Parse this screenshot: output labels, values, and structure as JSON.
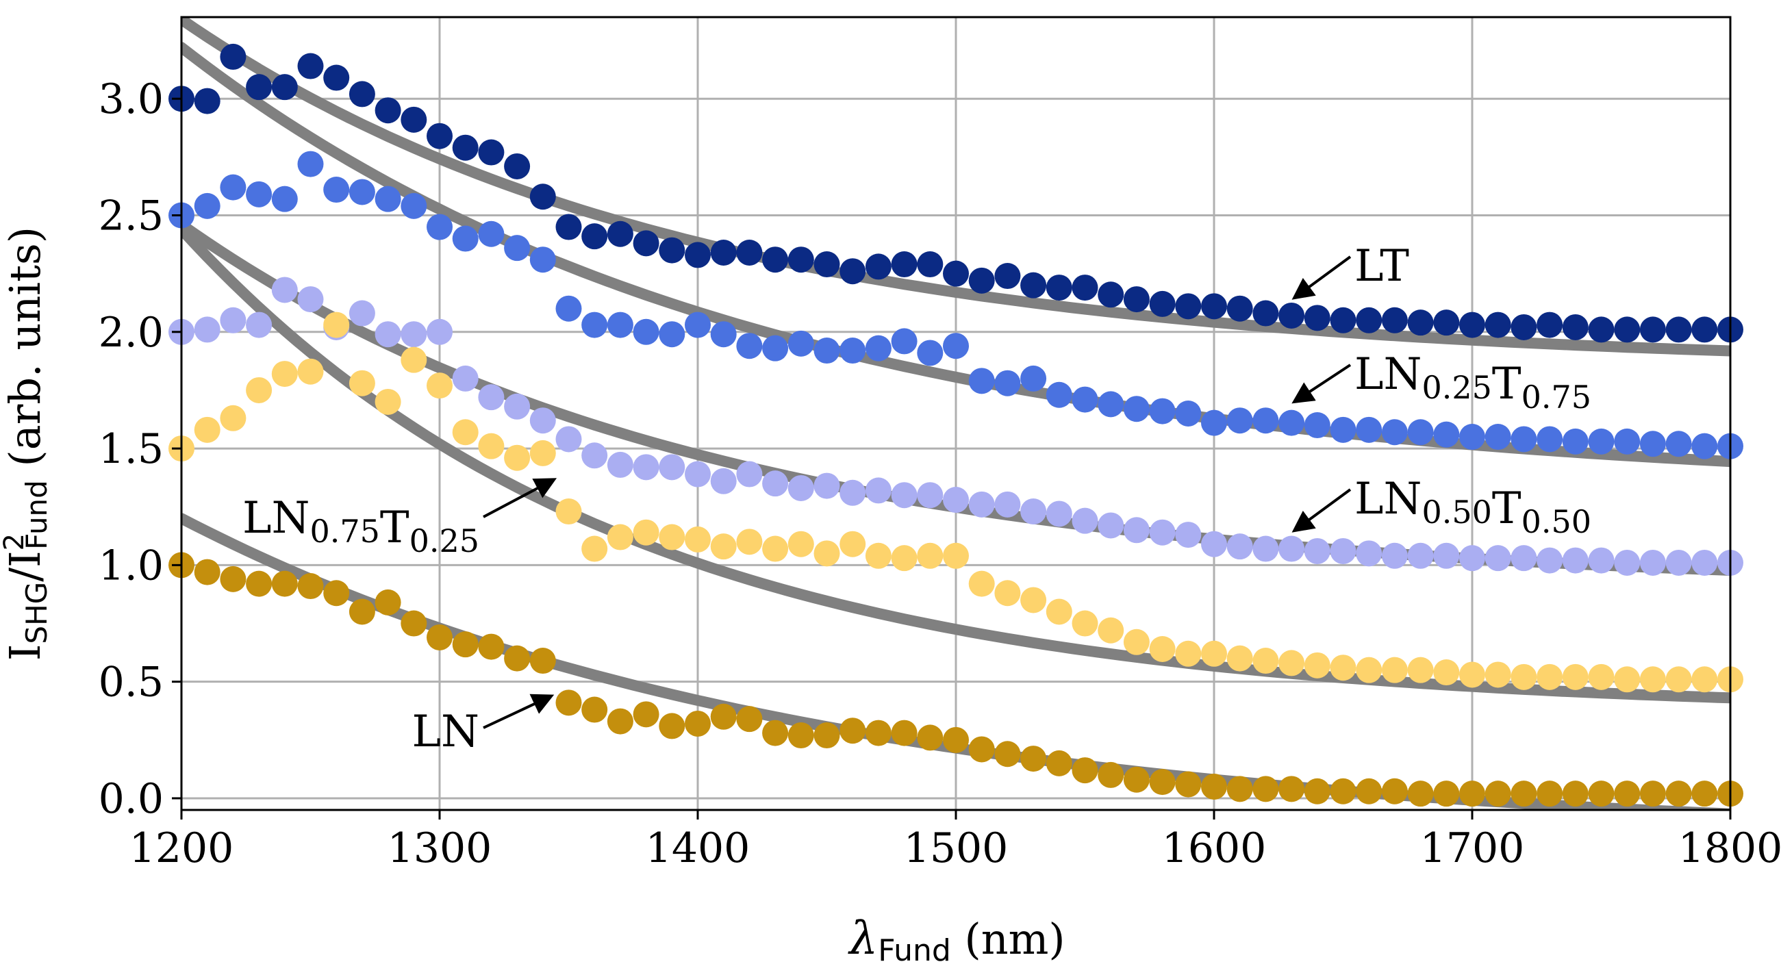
{
  "chart_data": {
    "type": "scatter",
    "title": "",
    "xlabel": "λ_Fund (nm)",
    "ylabel": "I_SHG/I²_Fund (arb. units)",
    "xlabel_parts": {
      "symbol": "λ",
      "sub": "Fund",
      "unit": " (nm)"
    },
    "ylabel_parts": {
      "main": "I",
      "sub1": "SHG",
      "slash": "/I",
      "sup": "2",
      "sub2": "Fund",
      "unit": " (arb. units)"
    },
    "xlim": [
      1200,
      1800
    ],
    "ylim": [
      -0.05,
      3.35
    ],
    "grid": true,
    "xticks": [
      1200,
      1300,
      1400,
      1500,
      1600,
      1700,
      1800
    ],
    "yticks": [
      0.0,
      0.5,
      1.0,
      1.5,
      2.0,
      2.5,
      3.0
    ],
    "ytick_labels": [
      "0.0",
      "0.5",
      "1.0",
      "1.5",
      "2.0",
      "2.5",
      "3.0"
    ],
    "x": [
      1200,
      1210,
      1220,
      1230,
      1240,
      1250,
      1260,
      1270,
      1280,
      1290,
      1300,
      1310,
      1320,
      1330,
      1340,
      1350,
      1360,
      1370,
      1380,
      1390,
      1400,
      1410,
      1420,
      1430,
      1440,
      1450,
      1460,
      1470,
      1480,
      1490,
      1500,
      1510,
      1520,
      1530,
      1540,
      1550,
      1560,
      1570,
      1580,
      1590,
      1600,
      1610,
      1620,
      1630,
      1640,
      1650,
      1660,
      1670,
      1680,
      1690,
      1700,
      1710,
      1720,
      1730,
      1740,
      1750,
      1760,
      1770,
      1780,
      1790,
      1800
    ],
    "series": [
      {
        "name": "LT",
        "color": "#0b2a84",
        "values": [
          3.0,
          2.99,
          3.18,
          3.05,
          3.05,
          3.14,
          3.09,
          3.02,
          2.95,
          2.91,
          2.84,
          2.79,
          2.77,
          2.71,
          2.58,
          2.45,
          2.41,
          2.42,
          2.38,
          2.35,
          2.33,
          2.34,
          2.34,
          2.31,
          2.31,
          2.29,
          2.26,
          2.28,
          2.29,
          2.29,
          2.25,
          2.22,
          2.24,
          2.2,
          2.19,
          2.19,
          2.16,
          2.14,
          2.12,
          2.11,
          2.11,
          2.1,
          2.08,
          2.07,
          2.06,
          2.05,
          2.05,
          2.05,
          2.04,
          2.04,
          2.03,
          2.03,
          2.02,
          2.03,
          2.02,
          2.01,
          2.01,
          2.01,
          2.01,
          2.01,
          2.01
        ],
        "fit_a": 1.85,
        "fit_b": 1.49,
        "fit_tau": 195
      },
      {
        "name": "LN0.25T0.75",
        "color": "#4a72e0",
        "values": [
          2.5,
          2.54,
          2.62,
          2.59,
          2.57,
          2.72,
          2.61,
          2.6,
          2.57,
          2.54,
          2.45,
          2.4,
          2.42,
          2.36,
          2.31,
          2.1,
          2.03,
          2.03,
          2.0,
          1.99,
          2.03,
          1.99,
          1.94,
          1.93,
          1.95,
          1.92,
          1.92,
          1.93,
          1.96,
          1.91,
          1.94,
          1.79,
          1.78,
          1.8,
          1.73,
          1.71,
          1.69,
          1.67,
          1.66,
          1.65,
          1.61,
          1.62,
          1.62,
          1.61,
          1.6,
          1.58,
          1.58,
          1.57,
          1.57,
          1.56,
          1.55,
          1.55,
          1.54,
          1.54,
          1.53,
          1.53,
          1.53,
          1.52,
          1.52,
          1.51,
          1.51
        ],
        "fit_a": 1.32,
        "fit_b": 1.9,
        "fit_tau": 220
      },
      {
        "name": "LN0.50T0.50",
        "color": "#aaaef2",
        "values": [
          2.0,
          2.01,
          2.05,
          2.03,
          2.18,
          2.14,
          2.02,
          2.08,
          1.99,
          1.99,
          2.0,
          1.8,
          1.72,
          1.68,
          1.62,
          1.54,
          1.47,
          1.43,
          1.42,
          1.42,
          1.39,
          1.36,
          1.39,
          1.35,
          1.33,
          1.34,
          1.31,
          1.32,
          1.3,
          1.3,
          1.28,
          1.26,
          1.26,
          1.23,
          1.22,
          1.19,
          1.17,
          1.15,
          1.14,
          1.13,
          1.09,
          1.08,
          1.07,
          1.07,
          1.06,
          1.06,
          1.05,
          1.04,
          1.04,
          1.04,
          1.03,
          1.03,
          1.03,
          1.02,
          1.02,
          1.02,
          1.01,
          1.01,
          1.01,
          1.01,
          1.01
        ],
        "fit_a": 0.9,
        "fit_b": 1.56,
        "fit_tau": 200
      },
      {
        "name": "LN0.75T0.25",
        "color": "#fdd36c",
        "values": [
          1.5,
          1.58,
          1.63,
          1.75,
          1.82,
          1.83,
          2.03,
          1.78,
          1.7,
          1.88,
          1.77,
          1.57,
          1.51,
          1.46,
          1.48,
          1.23,
          1.07,
          1.12,
          1.14,
          1.12,
          1.11,
          1.08,
          1.1,
          1.07,
          1.09,
          1.05,
          1.09,
          1.04,
          1.03,
          1.04,
          1.04,
          0.92,
          0.88,
          0.85,
          0.8,
          0.75,
          0.72,
          0.67,
          0.64,
          0.62,
          0.62,
          0.6,
          0.59,
          0.58,
          0.57,
          0.56,
          0.55,
          0.55,
          0.55,
          0.54,
          0.53,
          0.53,
          0.52,
          0.52,
          0.52,
          0.52,
          0.51,
          0.51,
          0.51,
          0.51,
          0.51
        ],
        "fit_a": 0.37,
        "fit_b": 2.07,
        "fit_tau": 170
      },
      {
        "name": "LN",
        "color": "#c48f0d",
        "values": [
          1.0,
          0.97,
          0.94,
          0.92,
          0.92,
          0.91,
          0.88,
          0.8,
          0.84,
          0.75,
          0.69,
          0.66,
          0.65,
          0.6,
          0.59,
          0.41,
          0.38,
          0.33,
          0.36,
          0.31,
          0.32,
          0.35,
          0.34,
          0.28,
          0.27,
          0.27,
          0.29,
          0.28,
          0.28,
          0.26,
          0.25,
          0.21,
          0.19,
          0.17,
          0.15,
          0.12,
          0.1,
          0.08,
          0.07,
          0.06,
          0.05,
          0.04,
          0.04,
          0.04,
          0.03,
          0.03,
          0.03,
          0.03,
          0.02,
          0.02,
          0.02,
          0.02,
          0.02,
          0.02,
          0.02,
          0.02,
          0.02,
          0.02,
          0.02,
          0.02,
          0.02
        ],
        "fit_a": -0.18,
        "fit_b": 1.38,
        "fit_tau": 240
      }
    ],
    "fit_color": "#808080",
    "annotations": [
      {
        "series": "LT",
        "main": "LT",
        "parts": []
      },
      {
        "series": "LN0.25T0.75",
        "main": "",
        "parts": [
          {
            "t": "LN",
            "sub": "0.25"
          },
          {
            "t": "T",
            "sub": "0.75"
          }
        ]
      },
      {
        "series": "LN0.50T0.50",
        "main": "",
        "parts": [
          {
            "t": "LN",
            "sub": "0.50"
          },
          {
            "t": "T",
            "sub": "0.50"
          }
        ]
      },
      {
        "series": "LN0.75T0.25",
        "main": "",
        "parts": [
          {
            "t": "LN",
            "sub": "0.75"
          },
          {
            "t": "T",
            "sub": "0.25"
          }
        ]
      },
      {
        "series": "LN",
        "main": "LN",
        "parts": []
      }
    ]
  }
}
